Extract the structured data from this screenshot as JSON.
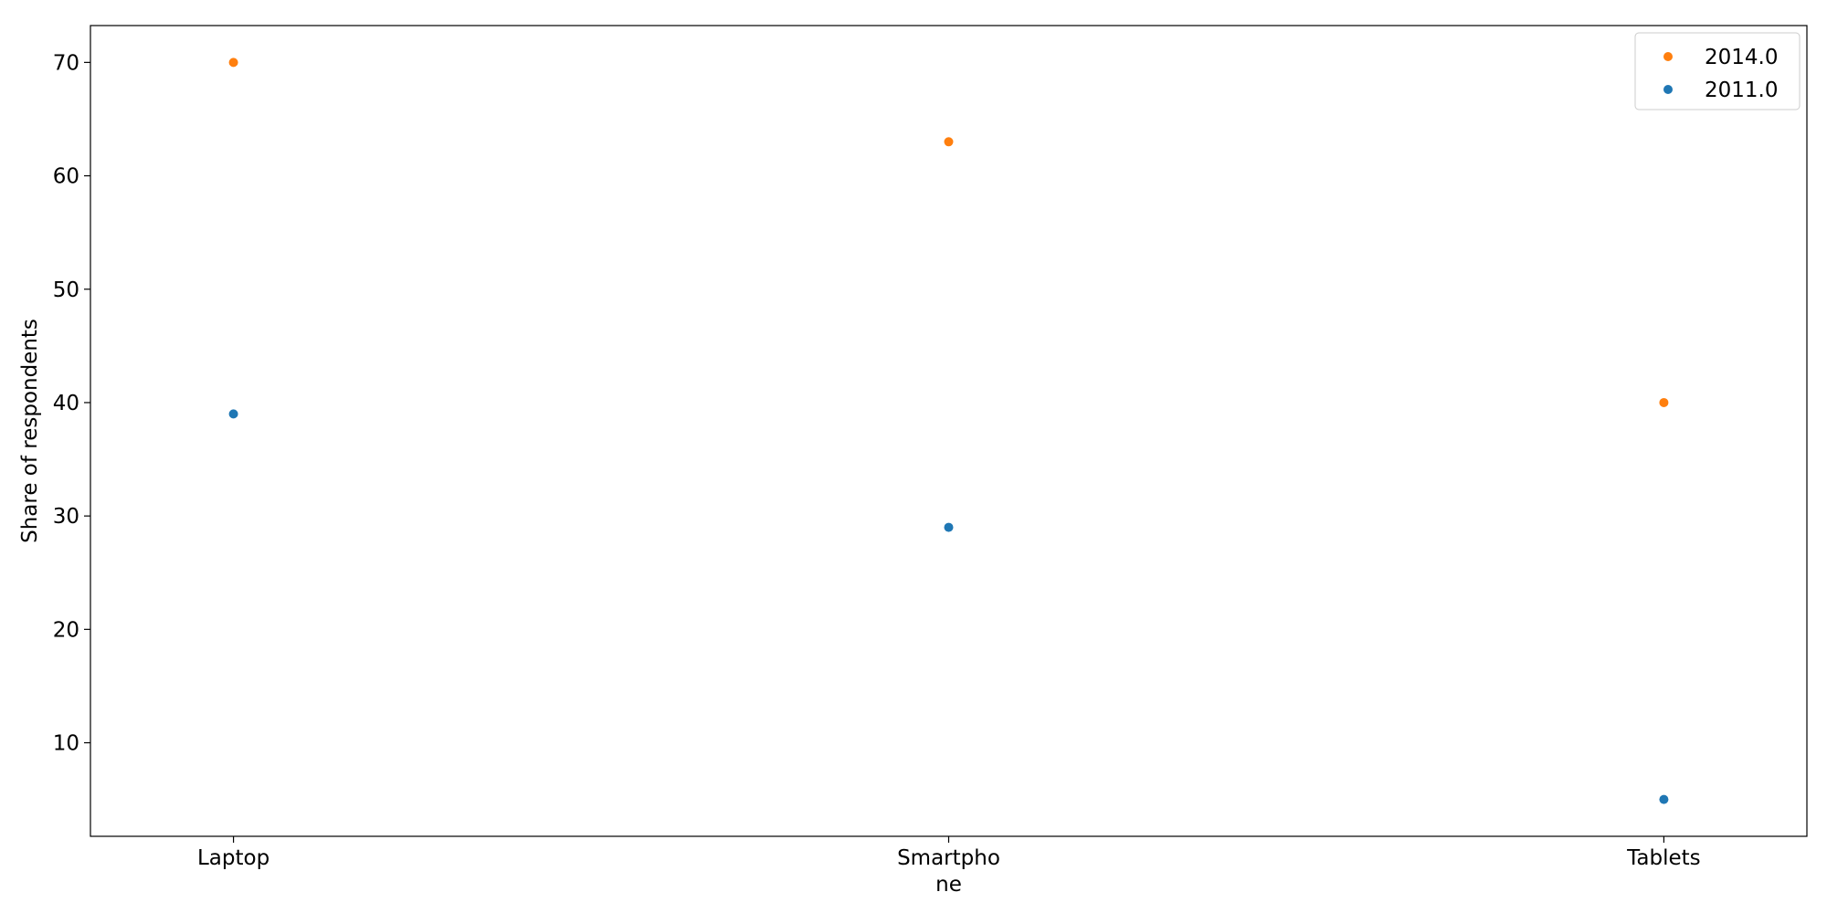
{
  "chart_data": {
    "type": "scatter",
    "categories": [
      "Laptop",
      "Smartphone",
      "Tablets"
    ],
    "category_tick_lines": [
      [
        "Laptop"
      ],
      [
        "Smartpho",
        "ne"
      ],
      [
        "Tablets"
      ]
    ],
    "series": [
      {
        "name": "2014.0",
        "color": "#ff7f0e",
        "values": [
          70,
          63,
          40
        ]
      },
      {
        "name": "2011.0",
        "color": "#1f77b4",
        "values": [
          39,
          29,
          5
        ]
      }
    ],
    "xlabel": "",
    "ylabel": "Share of respondents",
    "ylim": [
      1.75,
      73.25
    ],
    "yticks": [
      10,
      20,
      30,
      40,
      50,
      60,
      70
    ],
    "grid": false,
    "legend_position": "top-right"
  }
}
